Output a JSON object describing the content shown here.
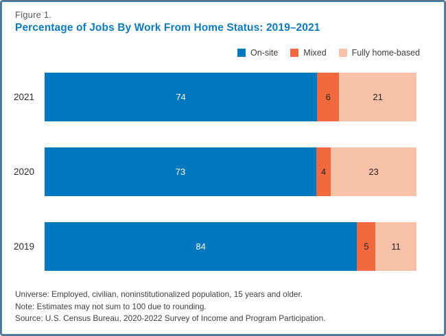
{
  "figure": {
    "label": "Figure 1.",
    "title": "Percentage of Jobs By Work From Home Status: 2019–2021"
  },
  "legend": {
    "items": [
      {
        "label": "On-site",
        "color": "#0077be"
      },
      {
        "label": "Mixed",
        "color": "#f0693f"
      },
      {
        "label": "Fully home-based",
        "color": "#f9c2a8"
      }
    ]
  },
  "chart_data": {
    "type": "bar",
    "orientation": "horizontal",
    "stacked": true,
    "title": "Percentage of Jobs By Work From Home Status: 2019–2021",
    "categories": [
      "2021",
      "2020",
      "2019"
    ],
    "series": [
      {
        "name": "On-site",
        "color": "#0077be",
        "label_color": "#ffffff",
        "values": [
          74,
          73,
          84
        ]
      },
      {
        "name": "Mixed",
        "color": "#f0693f",
        "label_color": "#26211e",
        "values": [
          6,
          4,
          5
        ]
      },
      {
        "name": "Fully home-based",
        "color": "#f9c2a8",
        "label_color": "#26211e",
        "values": [
          21,
          23,
          11
        ]
      }
    ],
    "xlabel": "",
    "ylabel": "",
    "xlim": [
      0,
      100
    ],
    "grid": false,
    "legend_position": "top-right",
    "value_labels": "inside-center"
  },
  "notes": {
    "universe": "Universe: Employed, civilian, noninstitutionalized population, 15 years and older.",
    "note": "Note: Estimates may not sum to 100 due to rounding.",
    "source": "Source: U.S. Census Bureau, 2020-2022 Survey of Income and Program Participation."
  },
  "colors": {
    "title": "#0d7ac0",
    "figure_label": "#555555",
    "border": "#4b7fae",
    "text": "#3f3f3f"
  }
}
